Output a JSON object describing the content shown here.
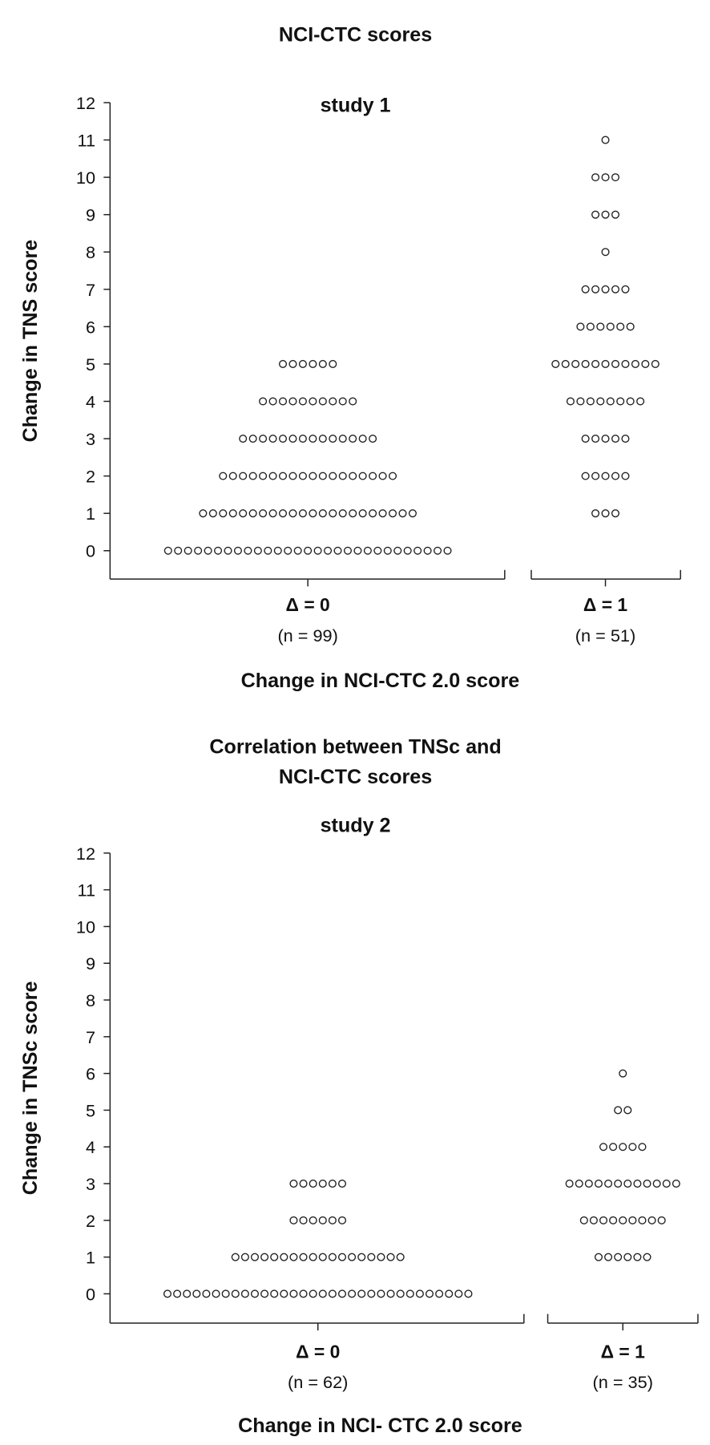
{
  "chart_data": [
    {
      "type": "scatter",
      "title_lines": [
        "NCI-CTC scores"
      ],
      "subtitle": "study 1",
      "ylabel": "Change in TNS  score",
      "xlabel": "Change in NCI-CTC  2.0 score",
      "ylim": [
        0,
        12
      ],
      "yticks": [
        "0",
        "1",
        "2",
        "3",
        "4",
        "5",
        "6",
        "7",
        "8",
        "9",
        "10",
        "11",
        "12"
      ],
      "categories": [
        {
          "label": "Δ  = 0",
          "n_label": "(n = 99)",
          "counts_by_score": {
            "0": 29,
            "1": 22,
            "2": 18,
            "3": 14,
            "4": 10,
            "5": 6
          }
        },
        {
          "label": "Δ = 1",
          "n_label": "(n = 51)",
          "counts_by_score": {
            "1": 3,
            "2": 5,
            "3": 5,
            "4": 8,
            "5": 11,
            "6": 6,
            "7": 5,
            "8": 1,
            "9": 3,
            "10": 3,
            "11": 1
          }
        }
      ]
    },
    {
      "type": "scatter",
      "title_lines": [
        "Correlation between TNSc and",
        "NCI-CTC scores"
      ],
      "subtitle": "study 2",
      "ylabel": "Change in TNSc score",
      "xlabel": "Change in NCI- CTC  2.0 score",
      "ylim": [
        0,
        12
      ],
      "yticks": [
        "0",
        "1",
        "2",
        "3",
        "4",
        "5",
        "6",
        "7",
        "8",
        "9",
        "10",
        "11",
        "12"
      ],
      "categories": [
        {
          "label": "Δ  = 0",
          "n_label": "(n = 62)",
          "counts_by_score": {
            "0": 32,
            "1": 18,
            "2": 6,
            "3": 6
          }
        },
        {
          "label": "Δ  = 1",
          "n_label": "(n = 35)",
          "counts_by_score": {
            "1": 6,
            "2": 9,
            "3": 12,
            "4": 5,
            "5": 2,
            "6": 1
          }
        }
      ]
    }
  ]
}
